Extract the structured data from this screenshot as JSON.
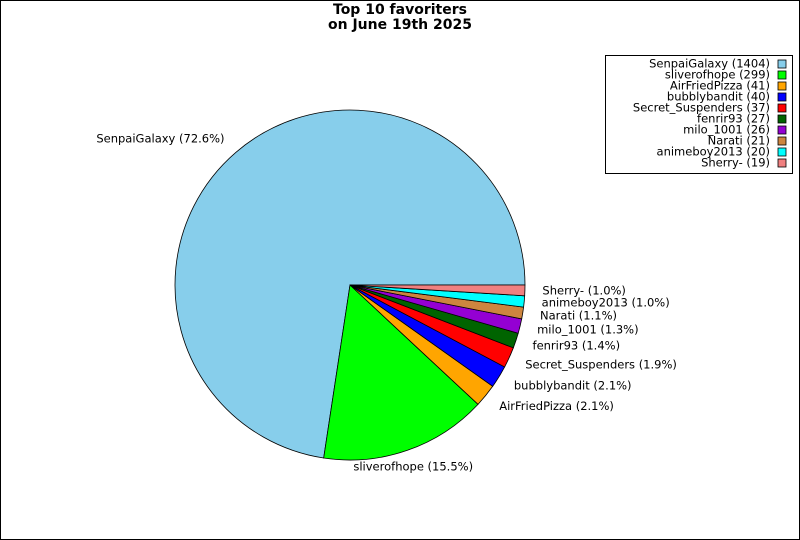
{
  "chart_data": {
    "type": "pie",
    "title": "Top 10 favoriters",
    "subtitle": "on June 19th 2025",
    "categories": [
      "SenpaiGalaxy",
      "sliverofhope",
      "AirFriedPizza",
      "bubblybandit",
      "Secret_Suspenders",
      "fenrir93",
      "milo_1001",
      "Narati",
      "animeboy2013",
      "Sherry-"
    ],
    "values": [
      1404,
      299,
      41,
      40,
      37,
      27,
      26,
      21,
      20,
      19
    ],
    "labels": [
      "SenpaiGalaxy (72.6%)",
      "sliverofhope (15.5%)",
      "AirFriedPizza (2.1%)",
      "bubblybandit (2.1%)",
      "Secret_Suspenders (1.9%)",
      "fenrir93 (1.4%)",
      "milo_1001 (1.3%)",
      "Narati (1.1%)",
      "animeboy2013 (1.0%)",
      "Sherry- (1.0%)"
    ],
    "legend_labels": [
      "SenpaiGalaxy (1404)",
      "sliverofhope (299)",
      "AirFriedPizza (41)",
      "bubblybandit (40)",
      "Secret_Suspenders (37)",
      "fenrir93 (27)",
      "milo_1001 (26)",
      "Narati (21)",
      "animeboy2013 (20)",
      "Sherry- (19)"
    ],
    "colors": [
      "#87ceeb",
      "#00ff00",
      "#ffa500",
      "#0000ff",
      "#ff0000",
      "#006400",
      "#9400d3",
      "#cd853f",
      "#00ffff",
      "#f08080"
    ],
    "legend_position": "upper right"
  }
}
